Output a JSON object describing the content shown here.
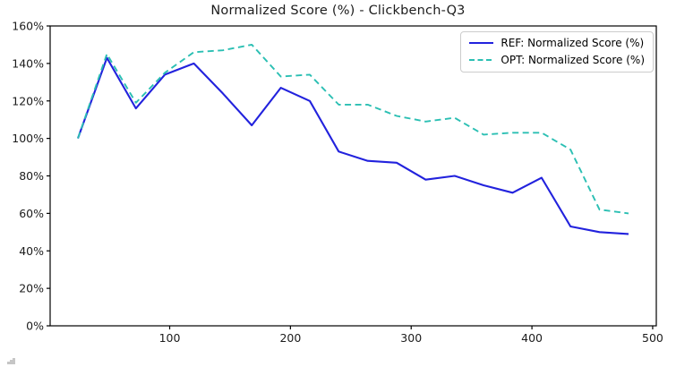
{
  "figure": {
    "title": "Normalized Score (%) - Clickbench-Q3"
  },
  "colors": {
    "ref_line": "#2222dd",
    "opt_line": "#2bbfb3",
    "axis": "#000000",
    "tick_text": "#1c1c1c",
    "legend_border": "#cccccc",
    "cursor_artifact": "#c6c6c6"
  },
  "chart_data": {
    "type": "line",
    "title": "Normalized Score (%) - Clickbench-Q3",
    "x": [
      24,
      48,
      72,
      96,
      120,
      144,
      168,
      192,
      216,
      240,
      264,
      288,
      312,
      336,
      360,
      384,
      408,
      432,
      456,
      480
    ],
    "series": [
      {
        "key": "ref",
        "name": "REF: Normalized Score (%)",
        "style": "solid",
        "color": "#2222dd",
        "values": [
          100,
          143,
          116,
          134,
          140,
          124,
          107,
          127,
          120,
          93,
          88,
          87,
          78,
          80,
          75,
          71,
          79,
          53,
          50,
          49
        ]
      },
      {
        "key": "opt",
        "name": "OPT: Normalized Score (%)",
        "style": "dashed",
        "color": "#2bbfb3",
        "values": [
          100,
          145,
          119,
          135,
          146,
          147,
          150,
          133,
          134,
          118,
          118,
          112,
          109,
          111,
          102,
          103,
          103,
          94,
          62,
          60
        ]
      }
    ],
    "xlabel": "",
    "ylabel": "",
    "xlim": [
      1,
      503
    ],
    "ylim": [
      0,
      160
    ],
    "x_ticks": [
      100,
      200,
      300,
      400,
      500
    ],
    "y_ticks": {
      "values": [
        0,
        20,
        40,
        60,
        80,
        100,
        120,
        140,
        160
      ],
      "labels": [
        "0%",
        "20%",
        "40%",
        "60%",
        "80%",
        "100%",
        "120%",
        "140%",
        "160%"
      ]
    },
    "grid": false,
    "legend_position": "upper right"
  }
}
